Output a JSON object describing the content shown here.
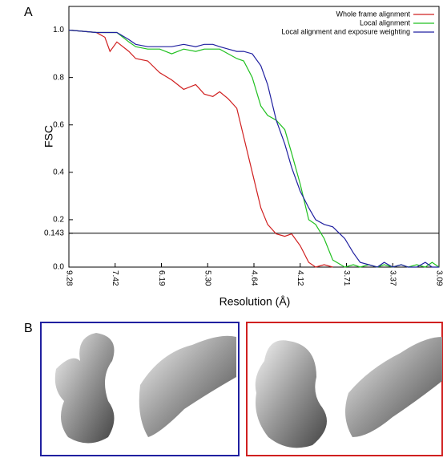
{
  "panel_labels": [
    "A",
    "B"
  ],
  "chart_data": {
    "type": "line",
    "xlabel": "Resolution (Å)",
    "ylabel": "FSC",
    "x": [
      0.108,
      0.124,
      0.129,
      0.132,
      0.136,
      0.143,
      0.147,
      0.154,
      0.161,
      0.168,
      0.175,
      0.182,
      0.187,
      0.192,
      0.196,
      0.201,
      0.206,
      0.21,
      0.215,
      0.22,
      0.224,
      0.229,
      0.234,
      0.238,
      0.243,
      0.248,
      0.252,
      0.257,
      0.262,
      0.269,
      0.274,
      0.278,
      0.283,
      0.288,
      0.292,
      0.297,
      0.302,
      0.306,
      0.311,
      0.316,
      0.32,
      0.324
    ],
    "series": [
      {
        "name": "Whole frame alignment",
        "color": "#d02020",
        "values": [
          1.0,
          0.99,
          0.97,
          0.91,
          0.95,
          0.91,
          0.88,
          0.87,
          0.82,
          0.79,
          0.75,
          0.77,
          0.73,
          0.72,
          0.74,
          0.71,
          0.67,
          0.55,
          0.4,
          0.25,
          0.18,
          0.14,
          0.13,
          0.14,
          0.09,
          0.02,
          0.0,
          0.01,
          0.0,
          null,
          null,
          null,
          null,
          null,
          null,
          null,
          null,
          null,
          null,
          null,
          null,
          null
        ]
      },
      {
        "name": "Local alignment",
        "color": "#20c020",
        "values": [
          1.0,
          0.99,
          0.99,
          0.99,
          0.99,
          0.95,
          0.93,
          0.92,
          0.92,
          0.9,
          0.92,
          0.91,
          0.92,
          0.92,
          0.92,
          0.9,
          0.88,
          0.87,
          0.8,
          0.68,
          0.64,
          0.62,
          0.58,
          0.48,
          0.35,
          0.2,
          0.18,
          0.12,
          0.03,
          0.0,
          0.01,
          0.0,
          0.01,
          0.0,
          0.01,
          0.0,
          0.01,
          0.0,
          0.01,
          0.0,
          0.02,
          0.0
        ]
      },
      {
        "name": "Local alignment and exposure weighting",
        "color": "#2020a0",
        "values": [
          1.0,
          0.99,
          0.99,
          0.99,
          0.99,
          0.96,
          0.94,
          0.93,
          0.93,
          0.93,
          0.94,
          0.93,
          0.94,
          0.94,
          0.93,
          0.92,
          0.91,
          0.91,
          0.9,
          0.85,
          0.77,
          0.62,
          0.52,
          0.42,
          0.32,
          0.25,
          0.2,
          0.18,
          0.17,
          0.12,
          0.06,
          0.02,
          0.01,
          0.0,
          0.02,
          0.0,
          0.01,
          0.0,
          0.0,
          0.02,
          0.0,
          0.0
        ]
      }
    ],
    "xlim": [
      0.108,
      0.324
    ],
    "xticks": [
      {
        "value": 0.108,
        "label": "9.28"
      },
      {
        "value": 0.135,
        "label": "7.42"
      },
      {
        "value": 0.162,
        "label": "6.19"
      },
      {
        "value": 0.189,
        "label": "5.30"
      },
      {
        "value": 0.216,
        "label": "4.64"
      },
      {
        "value": 0.243,
        "label": "4.12"
      },
      {
        "value": 0.27,
        "label": "3.71"
      },
      {
        "value": 0.297,
        "label": "3.37"
      },
      {
        "value": 0.324,
        "label": "3.09"
      }
    ],
    "ylim": [
      0,
      1.1
    ],
    "yticks": [
      {
        "value": 0,
        "label": "0.0"
      },
      0.143,
      {
        "value": 0.2,
        "label": "0.2"
      },
      {
        "value": 0.4,
        "label": "0.4"
      },
      {
        "value": 0.6,
        "label": "0.6"
      },
      {
        "value": 0.8,
        "label": "0.8"
      },
      {
        "value": 1.0,
        "label": "1.0"
      }
    ],
    "threshold": 0.143,
    "legend": "top-right"
  }
}
